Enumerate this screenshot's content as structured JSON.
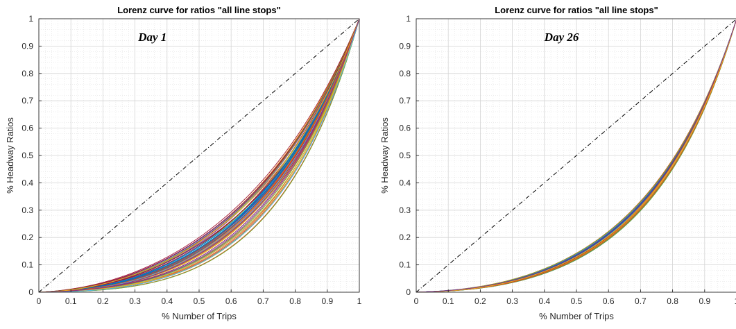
{
  "chart_data": [
    {
      "type": "line",
      "title": "Lorenz curve for ratios \"all line stops\"",
      "annotation": "Day 1",
      "xlabel": "% Number of Trips",
      "ylabel": "% Headway Ratios",
      "xlim": [
        0,
        1
      ],
      "ylim": [
        0,
        1
      ],
      "xticks": [
        "0",
        "0.1",
        "0.2",
        "0.3",
        "0.4",
        "0.5",
        "0.6",
        "0.7",
        "0.8",
        "0.9",
        "1"
      ],
      "yticks": [
        "0",
        "0.1",
        "0.2",
        "0.3",
        "0.4",
        "0.5",
        "0.6",
        "0.7",
        "0.8",
        "0.9",
        "1"
      ],
      "grid": true,
      "minor_grid": true,
      "equality_line": {
        "x": [
          0,
          1
        ],
        "y": [
          0,
          1
        ],
        "style": "dash-dot",
        "color": "#000000"
      },
      "curve_family": {
        "count": 60,
        "min_y_at_0_5": 0.1,
        "max_y_at_0_5": 0.23,
        "end_point": [
          1,
          1
        ]
      },
      "colors": [
        "#0072bd",
        "#d95319",
        "#edb120",
        "#7e2f8e",
        "#77ac30",
        "#4dbeee",
        "#a2142f"
      ]
    },
    {
      "type": "line",
      "title": "Lorenz curve for ratios \"all line stops\"",
      "annotation": "Day 26",
      "xlabel": "% Number of Trips",
      "ylabel": "% Headway Ratios",
      "xlim": [
        0,
        1
      ],
      "ylim": [
        0,
        1
      ],
      "xticks": [
        "0",
        "0.1",
        "0.2",
        "0.3",
        "0.4",
        "0.5",
        "0.6",
        "0.7",
        "0.8",
        "0.9",
        "1"
      ],
      "yticks": [
        "0",
        "0.1",
        "0.2",
        "0.3",
        "0.4",
        "0.5",
        "0.6",
        "0.7",
        "0.8",
        "0.9",
        "1"
      ],
      "grid": true,
      "minor_grid": true,
      "equality_line": {
        "x": [
          0,
          1
        ],
        "y": [
          0,
          1
        ],
        "style": "dash-dot",
        "color": "#000000"
      },
      "curve_family": {
        "count": 60,
        "min_y_at_0_5": 0.15,
        "max_y_at_0_5": 0.18,
        "end_point": [
          1,
          1
        ]
      },
      "colors": [
        "#0072bd",
        "#d95319",
        "#edb120",
        "#7e2f8e",
        "#77ac30",
        "#4dbeee",
        "#a2142f"
      ]
    }
  ]
}
